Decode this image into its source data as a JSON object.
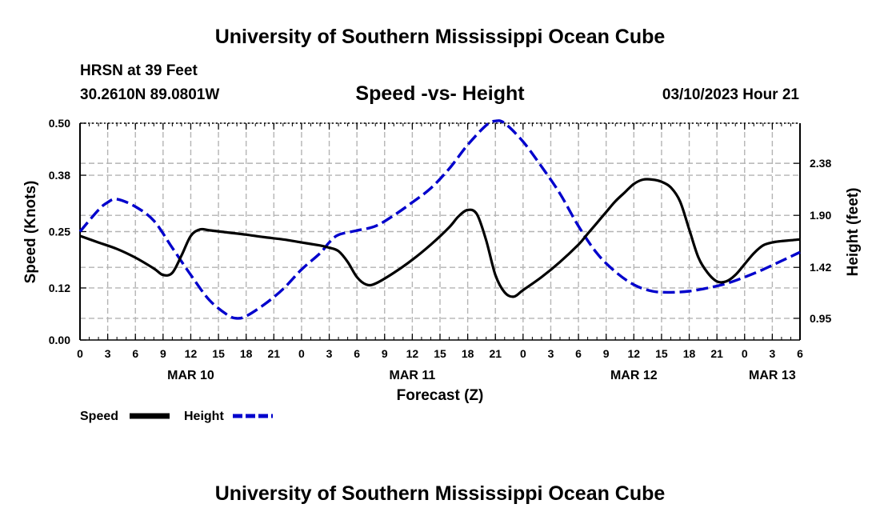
{
  "title": "University of Southern Mississippi Ocean Cube",
  "footer_title": "University of Southern Mississippi Ocean Cube",
  "station": {
    "name": "HRSN at 39 Feet",
    "coords": "30.2610N  89.0801W"
  },
  "subtitle": "Speed -vs- Height",
  "date_label": "03/10/2023 Hour 21",
  "legend": {
    "speed": "Speed",
    "height": "Height"
  },
  "chart_data": {
    "type": "line",
    "title": "Speed -vs- Height",
    "xlabel": "Forecast (Z)",
    "ylabel": "Speed (Knots)",
    "y2label": "Height (feet)",
    "x_unit": "hours since MAR 10 00Z",
    "xlim": [
      0,
      78
    ],
    "ylim": [
      0.0,
      0.5
    ],
    "y2lim": [
      0.75,
      2.75
    ],
    "y_ticks": [
      0.0,
      0.12,
      0.25,
      0.38,
      0.5
    ],
    "y_tick_labels": [
      "0.00",
      "0.12",
      "0.25",
      "0.38",
      "0.50"
    ],
    "y2_ticks": [
      0.95,
      1.42,
      1.9,
      2.38
    ],
    "y2_tick_labels": [
      "0.95",
      "1.42",
      "1.90",
      "2.38"
    ],
    "x_ticks": [
      0,
      3,
      6,
      9,
      12,
      15,
      18,
      21,
      24,
      27,
      30,
      33,
      36,
      39,
      42,
      45,
      48,
      51,
      54,
      57,
      60,
      63,
      66,
      69,
      72,
      75,
      78
    ],
    "x_tick_labels": [
      "0",
      "3",
      "6",
      "9",
      "12",
      "15",
      "18",
      "21",
      "0",
      "3",
      "6",
      "9",
      "12",
      "15",
      "18",
      "21",
      "0",
      "3",
      "6",
      "9",
      "12",
      "15",
      "18",
      "21",
      "0",
      "3",
      "6"
    ],
    "day_labels": [
      {
        "label": "MAR 10",
        "x": 12
      },
      {
        "label": "MAR 11",
        "x": 36
      },
      {
        "label": "MAR 12",
        "x": 60
      },
      {
        "label": "MAR 13",
        "x": 75
      }
    ],
    "grid": true,
    "series": [
      {
        "name": "Speed",
        "axis": "left",
        "color": "#000000",
        "dash": "solid",
        "x": [
          0,
          2,
          4,
          6,
          8,
          9,
          10,
          11,
          12,
          13,
          14,
          16,
          18,
          20,
          22,
          24,
          26,
          27,
          28,
          29,
          30,
          31,
          32,
          34,
          36,
          38,
          40,
          41,
          42,
          43,
          44,
          45,
          46,
          47,
          48,
          50,
          52,
          54,
          55,
          56,
          57,
          58,
          59,
          60,
          61,
          62,
          63,
          64,
          65,
          66,
          67,
          68,
          69,
          70,
          71,
          72,
          73,
          74,
          75,
          76,
          77,
          78
        ],
        "y": [
          0.24,
          0.225,
          0.21,
          0.19,
          0.165,
          0.15,
          0.155,
          0.195,
          0.24,
          0.255,
          0.253,
          0.248,
          0.243,
          0.237,
          0.232,
          0.225,
          0.218,
          0.213,
          0.205,
          0.18,
          0.145,
          0.128,
          0.13,
          0.155,
          0.185,
          0.22,
          0.26,
          0.285,
          0.3,
          0.29,
          0.23,
          0.15,
          0.11,
          0.1,
          0.115,
          0.145,
          0.18,
          0.22,
          0.245,
          0.27,
          0.295,
          0.32,
          0.34,
          0.36,
          0.37,
          0.37,
          0.365,
          0.352,
          0.32,
          0.255,
          0.19,
          0.155,
          0.135,
          0.135,
          0.15,
          0.175,
          0.2,
          0.218,
          0.225,
          0.228,
          0.23,
          0.232
        ]
      },
      {
        "name": "Height",
        "axis": "right",
        "color": "#0000cc",
        "dash": "dashed",
        "x": [
          0,
          2,
          3,
          4,
          6,
          8,
          10,
          12,
          14,
          16,
          17,
          18,
          20,
          22,
          24,
          26,
          27,
          28,
          30,
          32,
          34,
          36,
          38,
          40,
          42,
          44,
          45,
          46,
          48,
          50,
          52,
          54,
          56,
          58,
          60,
          62,
          64,
          66,
          68,
          70,
          72,
          74,
          76,
          78
        ],
        "y": [
          1.75,
          1.95,
          2.02,
          2.05,
          1.98,
          1.85,
          1.6,
          1.35,
          1.12,
          0.98,
          0.95,
          0.97,
          1.08,
          1.22,
          1.4,
          1.55,
          1.65,
          1.72,
          1.76,
          1.8,
          1.9,
          2.02,
          2.15,
          2.33,
          2.55,
          2.73,
          2.77,
          2.75,
          2.58,
          2.35,
          2.1,
          1.8,
          1.55,
          1.38,
          1.26,
          1.2,
          1.19,
          1.2,
          1.23,
          1.27,
          1.33,
          1.4,
          1.48,
          1.56
        ]
      }
    ]
  }
}
